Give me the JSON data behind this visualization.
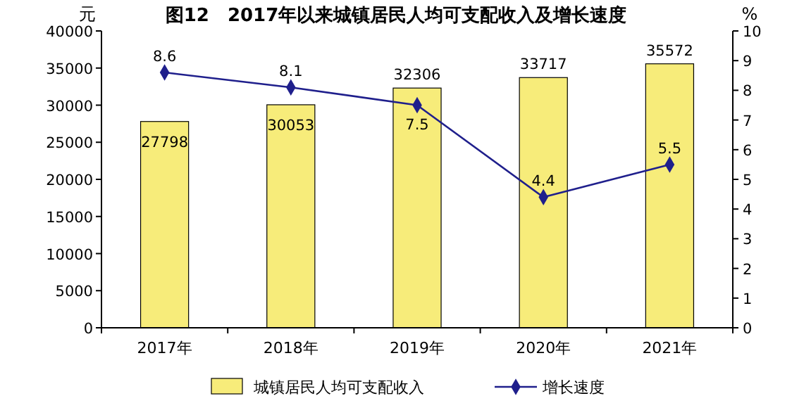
{
  "chart_data": {
    "type": "bar",
    "title": "图12　2017年以来城镇居民人均可支配收入及增长速度",
    "ylabel": "元",
    "y2label": "%",
    "categories": [
      "2017年",
      "2018年",
      "2019年",
      "2020年",
      "2021年"
    ],
    "series": [
      {
        "name": "城镇居民人均可支配收入",
        "color": "#f7ec7a",
        "values": [
          27798,
          30053,
          32306,
          33717,
          35572
        ]
      },
      {
        "name": "增长速度",
        "type": "line",
        "axis": "y2",
        "color": "#1f1f8c",
        "marker": "diamond",
        "values": [
          8.6,
          8.1,
          7.5,
          4.4,
          5.5
        ]
      }
    ],
    "ylim": [
      0,
      40000
    ],
    "yticks": [
      0,
      5000,
      10000,
      15000,
      20000,
      25000,
      30000,
      35000,
      40000
    ],
    "y2lim": [
      0,
      10
    ],
    "y2ticks": [
      0,
      1,
      2,
      3,
      4,
      5,
      6,
      7,
      8,
      9,
      10
    ],
    "data_labels": true,
    "legend": "bottom",
    "grid": false
  }
}
